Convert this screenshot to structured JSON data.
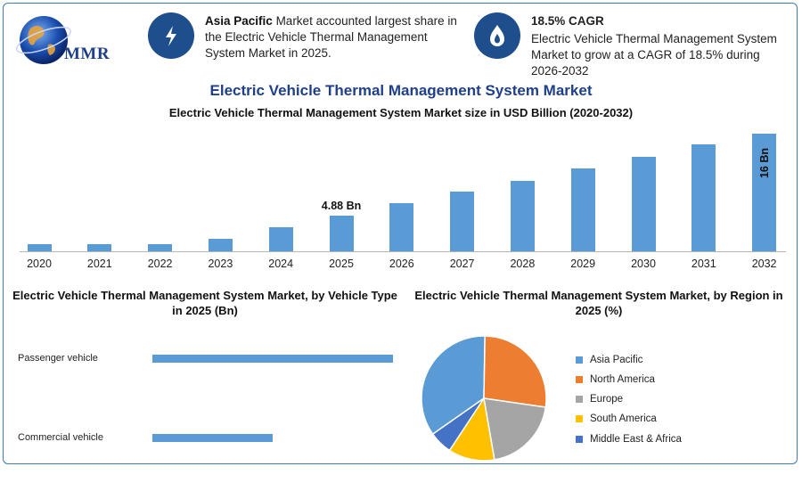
{
  "logo": {
    "text": "MMR"
  },
  "info_cards": [
    {
      "icon": "lightning-bolt-icon",
      "bold": "Asia Pacific",
      "text": "Market accounted largest share in the Electric Vehicle Thermal Management System Market in 2025."
    },
    {
      "icon": "flame-drop-icon",
      "bold": "18.5% CAGR",
      "text": "Electric Vehicle Thermal Management System Market to grow at a CAGR of 18.5% during 2026-2032"
    }
  ],
  "main_title": "Electric Vehicle Thermal Management System Market",
  "bar_chart_title": "Electric Vehicle Thermal Management System Market size in USD Billion (2020-2032)",
  "vehicle_chart_title": "Electric Vehicle Thermal Management System Market, by Vehicle Type in 2025 (Bn)",
  "region_chart_title": "Electric Vehicle Thermal Management System Market, by Region in 2025 (%)",
  "colors": {
    "bar": "#5b9bd5",
    "title": "#1f3f8a",
    "frame": "#3f79b6",
    "icon_bg": "#1f4e8c",
    "pie": [
      "#5b9bd5",
      "#ed7d31",
      "#a5a5a5",
      "#ffc000",
      "#4472c4"
    ]
  },
  "chart_data": [
    {
      "type": "bar",
      "title": "Electric Vehicle Thermal Management System Market size in USD Billion (2020-2032)",
      "categories": [
        "2020",
        "2021",
        "2022",
        "2023",
        "2024",
        "2025",
        "2026",
        "2027",
        "2028",
        "2029",
        "2030",
        "2031",
        "2032"
      ],
      "values": [
        1.0,
        1.0,
        1.0,
        1.7,
        3.3,
        4.88,
        6.5,
        8.1,
        9.6,
        11.3,
        12.8,
        14.5,
        16
      ],
      "data_labels": {
        "5": "4.88 Bn",
        "12": "16 Bn"
      },
      "ylim": [
        0,
        16
      ],
      "grid": false
    },
    {
      "type": "bar",
      "orientation": "horizontal",
      "title": "Electric Vehicle Thermal Management System Market, by Vehicle Type in 2025 (Bn)",
      "categories": [
        "Passenger vehicle",
        "Commercial vehicle"
      ],
      "values": [
        3.25,
        1.63
      ],
      "grid": false
    },
    {
      "type": "pie",
      "title": "Electric Vehicle Thermal Management System Market, by Region in 2025 (%)",
      "categories": [
        "Asia Pacific",
        "North America",
        "Europe",
        "South America",
        "Middle East & Africa"
      ],
      "values": [
        35,
        27,
        20,
        12,
        6
      ],
      "legend": "right"
    }
  ]
}
